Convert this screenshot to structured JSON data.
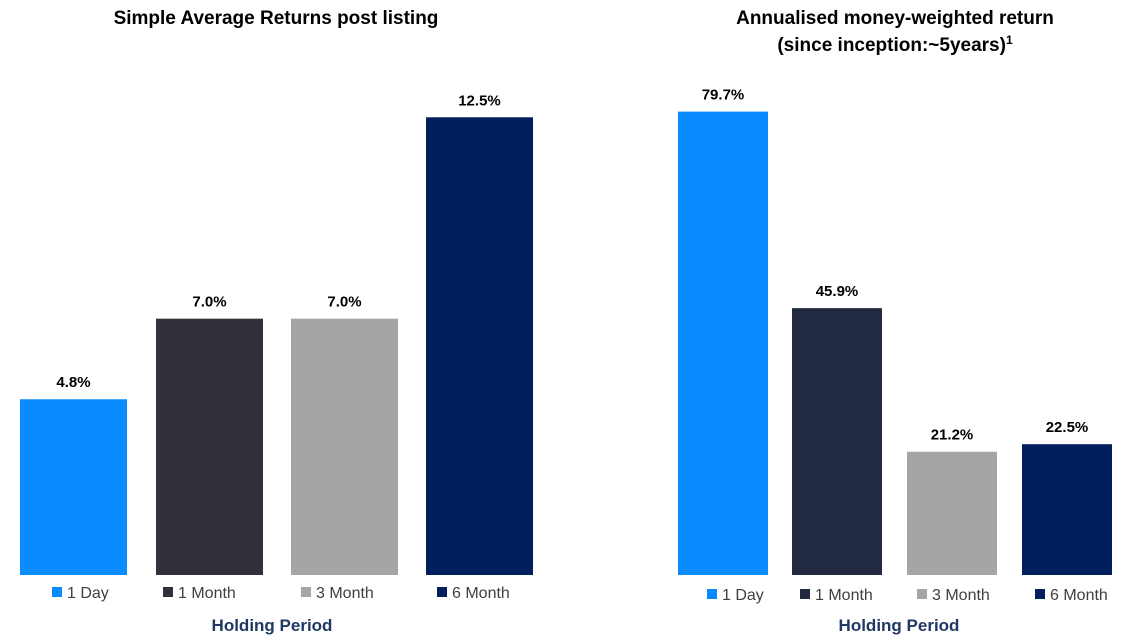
{
  "chart_data": [
    {
      "type": "bar",
      "title": "Simple Average Returns post listing",
      "title_sup": "",
      "subtitle": "",
      "xlabel": "Holding Period",
      "ylabel": "",
      "categories": [
        "1 Day",
        "1 Month",
        "3 Month",
        "6 Month"
      ],
      "values": [
        4.8,
        7.0,
        7.0,
        12.5
      ],
      "value_labels": [
        "4.8%",
        "7.0%",
        "7.0%",
        "12.5%"
      ],
      "colors": [
        "#0a8bff",
        "#30313b",
        "#a5a5a5",
        "#011f5c"
      ],
      "ylim": [
        0,
        13.6
      ],
      "grid": false,
      "legend_position": "bottom"
    },
    {
      "type": "bar",
      "title": "Annualised money-weighted return",
      "subtitle": "(since inception:~5years)",
      "title_sup": "1",
      "xlabel": "Holding Period",
      "ylabel": "",
      "categories": [
        "1 Day",
        "1 Month",
        "3 Month",
        "6 Month"
      ],
      "values": [
        79.7,
        45.9,
        21.2,
        22.5
      ],
      "value_labels": [
        "79.7%",
        "45.9%",
        "21.2%",
        "22.5%"
      ],
      "colors": [
        "#0a8bff",
        "#222a42",
        "#a5a5a5",
        "#011f5c"
      ],
      "ylim": [
        0,
        86
      ],
      "grid": false,
      "legend_position": "bottom"
    }
  ]
}
